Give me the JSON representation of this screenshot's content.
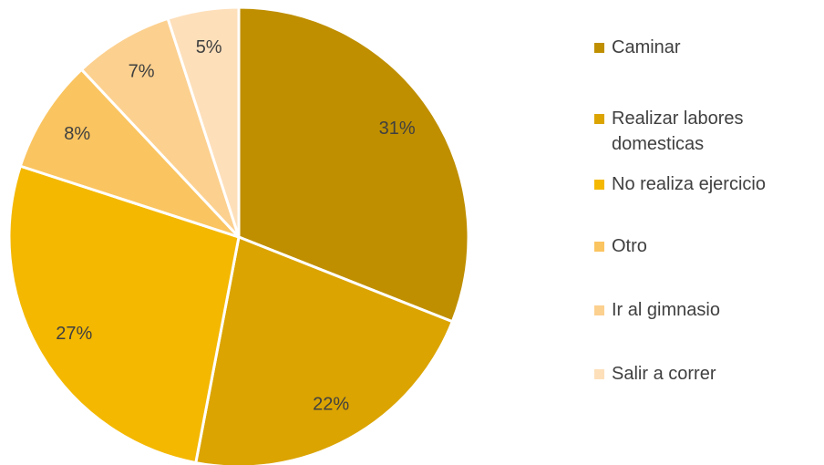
{
  "chart_data": {
    "type": "pie",
    "categories": [
      "Caminar",
      "Realizar labores domesticas",
      "No realiza ejercicio",
      "Otro",
      "Ir al gimnasio",
      "Salir a correr"
    ],
    "values": [
      31,
      22,
      27,
      8,
      7,
      5
    ],
    "value_labels": [
      "31%",
      "22%",
      "27%",
      "8%",
      "7%",
      "5%"
    ],
    "colors": [
      "#BF8F00",
      "#DBA400",
      "#F4B800",
      "#FAC460",
      "#FCD08F",
      "#FDDFBA"
    ],
    "legend": "right"
  }
}
